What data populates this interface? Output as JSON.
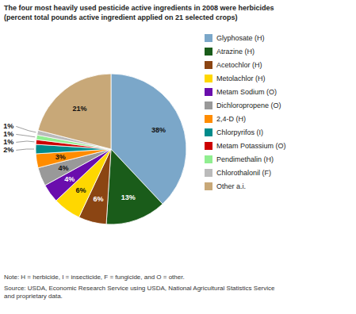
{
  "chart_data": {
    "type": "pie",
    "title": "The four most heavily used pesticide active ingredients in 2008 were herbicides",
    "subtitle": "(percent total pounds active ingredient applied on 21 selected crops)",
    "categories": [
      "Glyphosate (H)",
      "Atrazine (H)",
      "Acetochlor (H)",
      "Metolachlor (H)",
      "Metam Sodium (O)",
      "Dichloropropene (O)",
      "2,4-D (H)",
      "Chlorpyrifos (I)",
      "Metam Potassium (O)",
      "Pendimethalin (H)",
      "Chlorothalonil (F)",
      "Other a.i."
    ],
    "values": [
      38,
      13,
      6,
      6,
      4,
      4,
      3,
      2,
      1,
      1,
      1,
      21
    ],
    "value_labels": [
      "38%",
      "13%",
      "6%",
      "6%",
      "4%",
      "4%",
      "3%",
      "2%",
      "1%",
      "1%",
      "1%",
      "21%"
    ],
    "colors": [
      "#7BA7C9",
      "#1A5C1A",
      "#8B4513",
      "#FFD700",
      "#6A0DAD",
      "#999999",
      "#FF8C00",
      "#008B8B",
      "#CC0000",
      "#90EE90",
      "#BBBBBB",
      "#C8A878"
    ],
    "data_labels": true,
    "legend": "right",
    "annotations": [
      "Note: H = herbicide, I = insecticide, F = fungicide, and O = other.",
      "Source: USDA, Economic Research Service using USDA, National Agricultural Statistics Service\nand proprietary data."
    ]
  }
}
